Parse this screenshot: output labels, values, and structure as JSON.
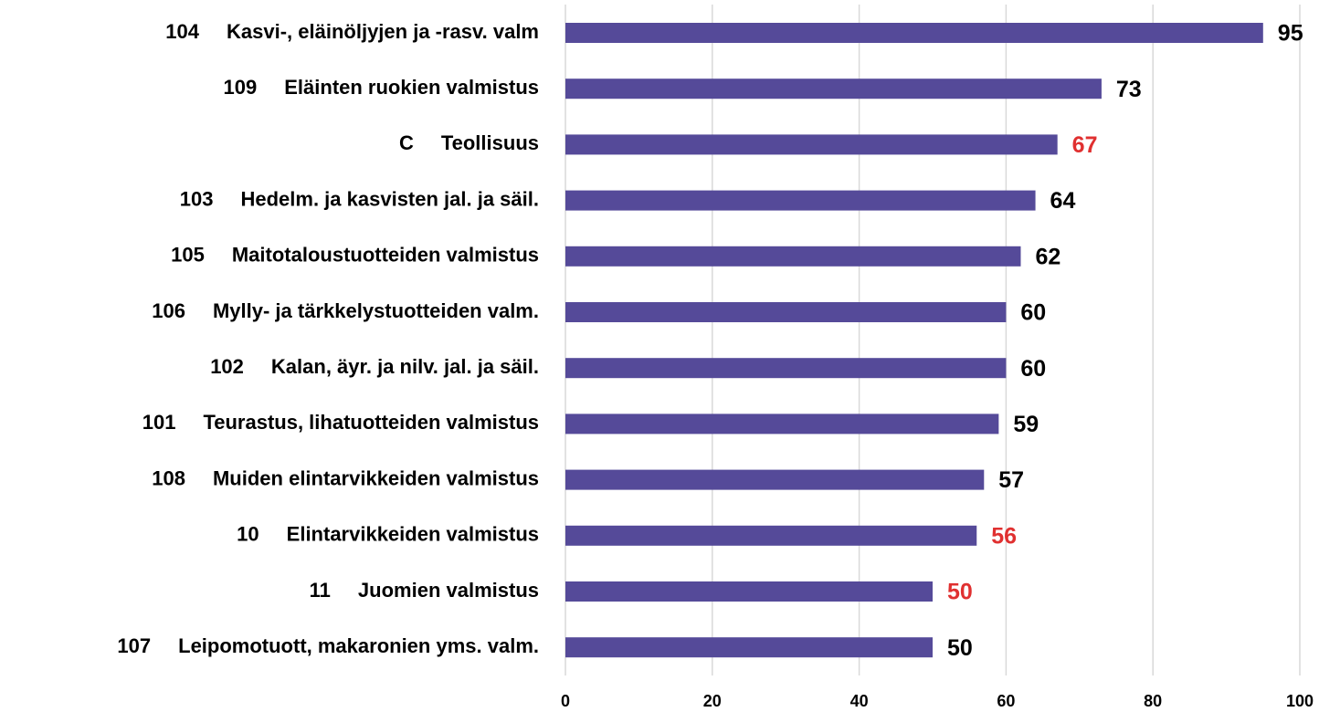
{
  "chart_data": {
    "type": "hbar",
    "codes": [
      "104",
      "109",
      "C",
      "103",
      "105",
      "106",
      "102",
      "101",
      "108",
      "10",
      "11",
      "107"
    ],
    "categories": [
      "Kasvi-, eläinöljyjen ja -rasv. valm",
      "Eläinten ruokien valmistus",
      "Teollisuus",
      "Hedelm. ja kasvisten jal. ja säil.",
      "Maitotaloustuotteiden valmistus",
      "Mylly- ja tärkkelystuotteiden valm.",
      "Kalan, äyr. ja nilv. jal. ja säil.",
      "Teurastus, lihatuotteiden valmistus",
      "Muiden elintarvikkeiden valmistus",
      "Elintarvikkeiden valmistus",
      "Juomien valmistus",
      "Leipomotuott, makaronien yms. valm."
    ],
    "values": [
      95,
      73,
      67,
      64,
      62,
      60,
      60,
      59,
      57,
      56,
      50,
      50
    ],
    "color": "#554a99",
    "label_colors": [
      "#000000",
      "#000000",
      "#e03030",
      "#000000",
      "#000000",
      "#000000",
      "#000000",
      "#000000",
      "#000000",
      "#e03030",
      "#e03030",
      "#000000"
    ],
    "xlim": [
      0,
      100
    ],
    "xticks": [
      0,
      20,
      40,
      60,
      80,
      100
    ],
    "grid": true
  }
}
